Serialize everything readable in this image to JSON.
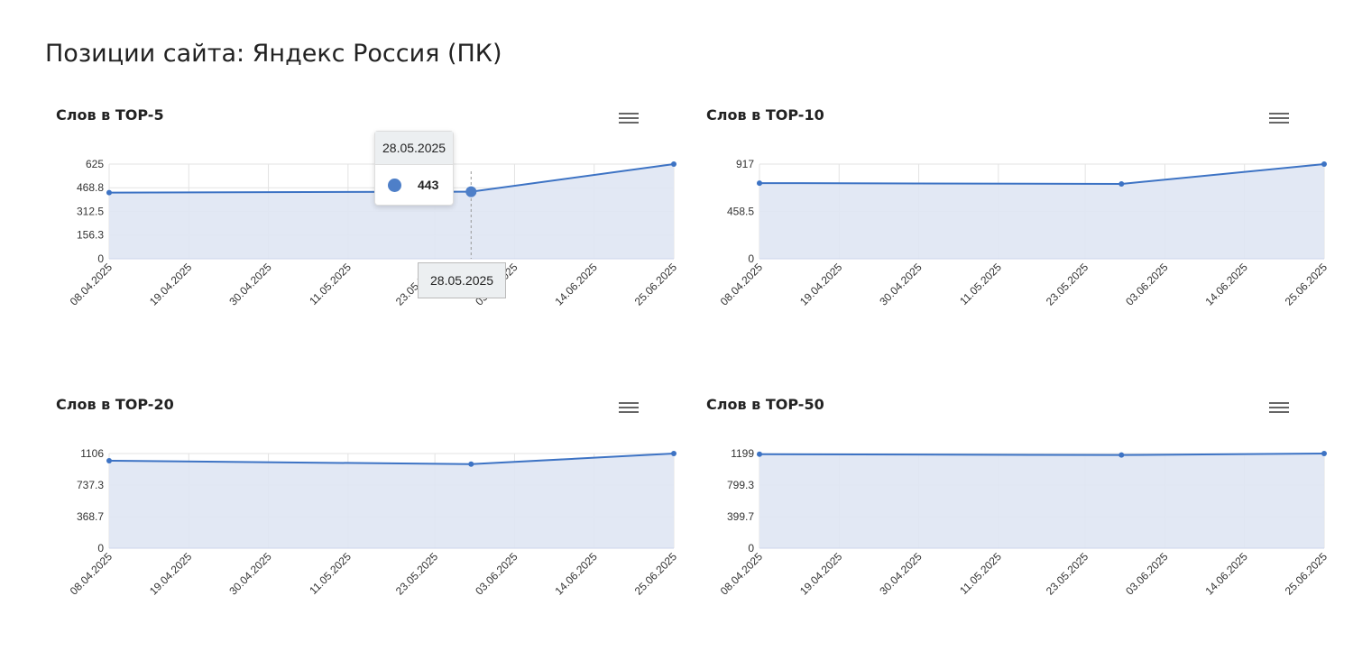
{
  "page_title": "Позиции сайта: Яндекс Россия (ПК)",
  "colors": {
    "line": "#3d73c4",
    "fill": "#dfe6f3",
    "grid": "#e3e3e3"
  },
  "chart_data": [
    {
      "type": "area",
      "title": "Слов в TOP-5",
      "x": [
        "08.04.2025",
        "28.05.2025",
        "25.06.2025"
      ],
      "values": [
        437,
        443,
        625
      ],
      "ylim": [
        0,
        625
      ],
      "yticks": [
        "0",
        "156.3",
        "312.5",
        "468.8",
        "625"
      ],
      "xticks": [
        "08.04.2025",
        "19.04.2025",
        "30.04.2025",
        "11.05.2025",
        "23.05.2025",
        "03.06.2025",
        "14.06.2025",
        "25.06.2025"
      ],
      "tooltip": {
        "date": "28.05.2025",
        "value": "443",
        "x_label": "28.05.2025"
      }
    },
    {
      "type": "area",
      "title": "Слов в TOP-10",
      "x": [
        "08.04.2025",
        "28.05.2025",
        "25.06.2025"
      ],
      "values": [
        733,
        725,
        917
      ],
      "ylim": [
        0,
        917
      ],
      "yticks": [
        "0",
        "458.5",
        "917"
      ],
      "xticks": [
        "08.04.2025",
        "19.04.2025",
        "30.04.2025",
        "11.05.2025",
        "23.05.2025",
        "03.06.2025",
        "14.06.2025",
        "25.06.2025"
      ]
    },
    {
      "type": "area",
      "title": "Слов в TOP-20",
      "x": [
        "08.04.2025",
        "28.05.2025",
        "25.06.2025"
      ],
      "values": [
        1022,
        982,
        1106
      ],
      "ylim": [
        0,
        1106
      ],
      "yticks": [
        "0",
        "368.7",
        "737.3",
        "1106"
      ],
      "xticks": [
        "08.04.2025",
        "19.04.2025",
        "30.04.2025",
        "11.05.2025",
        "23.05.2025",
        "03.06.2025",
        "14.06.2025",
        "25.06.2025"
      ]
    },
    {
      "type": "area",
      "title": "Слов в TOP-50",
      "x": [
        "08.04.2025",
        "28.05.2025",
        "25.06.2025"
      ],
      "values": [
        1190,
        1180,
        1199
      ],
      "ylim": [
        0,
        1199
      ],
      "yticks": [
        "0",
        "399.7",
        "799.3",
        "1199"
      ],
      "xticks": [
        "08.04.2025",
        "19.04.2025",
        "30.04.2025",
        "11.05.2025",
        "23.05.2025",
        "03.06.2025",
        "14.06.2025",
        "25.06.2025"
      ]
    }
  ]
}
